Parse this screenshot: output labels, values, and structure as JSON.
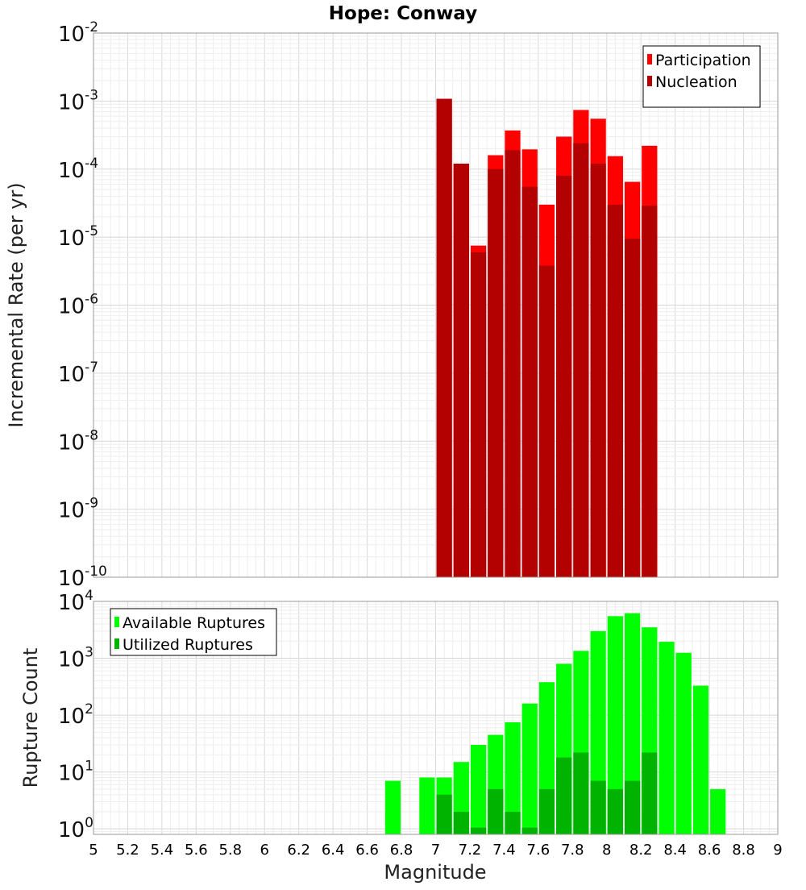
{
  "chart_data": {
    "title": "Hope: Conway",
    "xlabel": "Magnitude",
    "xlim": [
      5,
      9
    ],
    "x_ticks": [
      "5",
      "5.2",
      "5.4",
      "5.6",
      "5.8",
      "6",
      "6.2",
      "6.4",
      "6.6",
      "6.8",
      "7",
      "7.2",
      "7.4",
      "7.6",
      "7.8",
      "8",
      "8.2",
      "8.4",
      "8.6",
      "8.8",
      "9"
    ],
    "bin_width": 0.1,
    "grid": true,
    "panels": [
      {
        "type": "bar",
        "ylabel": "Incremental Rate (per yr)",
        "yscale": "log",
        "ylim": [
          1e-10,
          0.01
        ],
        "y_ticks": [
          {
            "mantissa": "10",
            "exp": "-10"
          },
          {
            "mantissa": "10",
            "exp": "-9"
          },
          {
            "mantissa": "10",
            "exp": "-8"
          },
          {
            "mantissa": "10",
            "exp": "-7"
          },
          {
            "mantissa": "10",
            "exp": "-6"
          },
          {
            "mantissa": "10",
            "exp": "-5"
          },
          {
            "mantissa": "10",
            "exp": "-4"
          },
          {
            "mantissa": "10",
            "exp": "-3"
          },
          {
            "mantissa": "10",
            "exp": "-2"
          }
        ],
        "legend_position": "top-right",
        "series": [
          {
            "name": "Participation",
            "color": "#ff0000",
            "x": [
              7.05,
              7.15,
              7.25,
              7.35,
              7.45,
              7.55,
              7.65,
              7.75,
              7.85,
              7.95,
              8.05,
              8.15,
              8.25
            ],
            "values": [
              0.00108,
              0.00012,
              7.5e-06,
              0.00016,
              0.00037,
              0.000195,
              3e-05,
              0.0003,
              0.00074,
              0.00055,
              0.000155,
              6.5e-05,
              0.00022
            ]
          },
          {
            "name": "Nucleation",
            "color": "#b30000",
            "x": [
              7.05,
              7.15,
              7.25,
              7.35,
              7.45,
              7.55,
              7.65,
              7.75,
              7.85,
              7.95,
              8.05,
              8.15,
              8.25
            ],
            "values": [
              0.00108,
              0.00012,
              6e-06,
              0.0001,
              0.00019,
              5.5e-05,
              3.8e-06,
              8e-05,
              0.00024,
              0.00012,
              3e-05,
              9.5e-06,
              2.9e-05
            ]
          }
        ]
      },
      {
        "type": "bar",
        "ylabel": "Rupture Count",
        "yscale": "log",
        "ylim": [
          0.8,
          10000
        ],
        "y_ticks": [
          {
            "mantissa": "10",
            "exp": "0"
          },
          {
            "mantissa": "10",
            "exp": "1"
          },
          {
            "mantissa": "10",
            "exp": "2"
          },
          {
            "mantissa": "10",
            "exp": "3"
          },
          {
            "mantissa": "10",
            "exp": "4"
          }
        ],
        "legend_position": "top-left",
        "series": [
          {
            "name": "Available Ruptures",
            "color": "#00ff00",
            "x": [
              6.75,
              6.95,
              7.05,
              7.15,
              7.25,
              7.35,
              7.45,
              7.55,
              7.65,
              7.75,
              7.85,
              7.95,
              8.05,
              8.15,
              8.25,
              8.35,
              8.45,
              8.55,
              8.65
            ],
            "values": [
              7,
              8,
              8,
              15,
              30,
              45,
              75,
              160,
              380,
              800,
              1350,
              3000,
              5500,
              6200,
              3500,
              1950,
              1250,
              330,
              5
            ]
          },
          {
            "name": "Utilized Ruptures",
            "color": "#00b300",
            "x": [
              7.05,
              7.15,
              7.25,
              7.35,
              7.45,
              7.55,
              7.65,
              7.75,
              7.85,
              7.95,
              8.05,
              8.15,
              8.25
            ],
            "values": [
              4,
              2,
              1.05,
              5,
              2,
              1.05,
              5,
              18,
              22,
              7,
              5,
              7,
              22
            ]
          }
        ]
      }
    ]
  }
}
